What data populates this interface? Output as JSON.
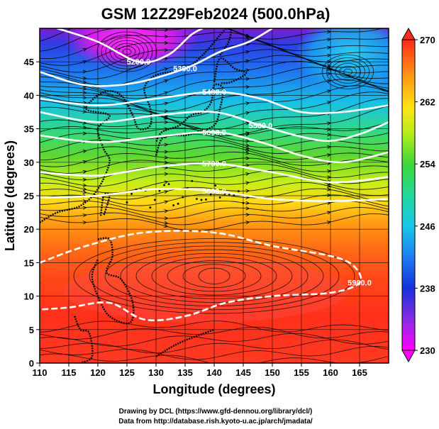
{
  "chart_data": {
    "type": "heatmap",
    "title": "GSM 12Z29Feb2024 (500.0hPa)",
    "xlabel": "Longitude (degrees)",
    "ylabel": "Latitude  (degrees)",
    "xlim": [
      110,
      170
    ],
    "ylim": [
      0,
      50
    ],
    "x_ticks": [
      "110",
      "115",
      "120",
      "125",
      "130",
      "135",
      "140",
      "145",
      "150",
      "155",
      "160",
      "165"
    ],
    "y_ticks": [
      "0",
      "5",
      "10",
      "15",
      "20",
      "25",
      "30",
      "35",
      "40",
      "45"
    ],
    "colorbar": {
      "range": [
        230,
        270
      ],
      "ticks": [
        "230",
        "238",
        "246",
        "254",
        "262",
        "270"
      ],
      "colors": [
        "#ff00ff",
        "#8a2be2",
        "#1530e0",
        "#19a6f0",
        "#21e0c8",
        "#3ed637",
        "#b6ee1c",
        "#ffe414",
        "#ff9a12",
        "#ff5a12",
        "#ff2b1a"
      ]
    },
    "contours": [
      {
        "label": "5200.0",
        "lat_at_lon": [
          [
            113,
            50
          ],
          [
            120,
            48
          ],
          [
            127,
            45
          ],
          [
            132,
            46
          ],
          [
            136,
            49
          ],
          [
            138,
            50
          ]
        ]
      },
      {
        "label": "5300.0",
        "lat_at_lon": [
          [
            110,
            43.5
          ],
          [
            118,
            41.5
          ],
          [
            126,
            41.8
          ],
          [
            135,
            44
          ],
          [
            141,
            46.5
          ],
          [
            146,
            48
          ],
          [
            150,
            50
          ]
        ]
      },
      {
        "label": "5400.0",
        "lat_at_lon": [
          [
            110,
            39.5
          ],
          [
            120,
            38.5
          ],
          [
            130,
            39.5
          ],
          [
            140,
            40.5
          ],
          [
            148,
            39.5
          ],
          [
            155,
            37.5
          ],
          [
            162,
            37.5
          ],
          [
            170,
            38.5
          ]
        ]
      },
      {
        "label": "5500.0",
        "lat_at_lon": [
          [
            110,
            37.5
          ],
          [
            120,
            36
          ],
          [
            130,
            37
          ],
          [
            140,
            37.5
          ],
          [
            148,
            35.5
          ],
          [
            155,
            33.8
          ],
          [
            160,
            33.2
          ],
          [
            165,
            34.2
          ],
          [
            170,
            36
          ]
        ]
      },
      {
        "label": "5600.0",
        "lat_at_lon": [
          [
            110,
            34
          ],
          [
            120,
            33
          ],
          [
            130,
            33.8
          ],
          [
            140,
            34.5
          ],
          [
            148,
            33
          ],
          [
            155,
            31
          ],
          [
            162,
            30
          ],
          [
            170,
            31.5
          ]
        ]
      },
      {
        "label": "5700.0",
        "lat_at_lon": [
          [
            110,
            28.5
          ],
          [
            120,
            28
          ],
          [
            130,
            29.3
          ],
          [
            140,
            29.8
          ],
          [
            150,
            28.5
          ],
          [
            160,
            27
          ],
          [
            170,
            27.8
          ]
        ]
      },
      {
        "label": "5800.0",
        "lat_at_lon": [
          [
            110,
            24.7
          ],
          [
            120,
            25
          ],
          [
            130,
            26
          ],
          [
            140,
            25.7
          ],
          [
            150,
            24.5
          ],
          [
            160,
            24.2
          ],
          [
            170,
            24.5
          ]
        ]
      },
      {
        "label": "5900.0",
        "lat_at_lon": [
          [
            110,
            15
          ],
          [
            118,
            17.5
          ],
          [
            128,
            19.5
          ],
          [
            140,
            19.5
          ],
          [
            150,
            17.5
          ],
          [
            160,
            16
          ],
          [
            164,
            14.5
          ],
          [
            165,
            12
          ],
          [
            160,
            10.5
          ],
          [
            150,
            10
          ],
          [
            142,
            9
          ],
          [
            135,
            7
          ],
          [
            128,
            6.5
          ],
          [
            122,
            9
          ],
          [
            115,
            8.3
          ],
          [
            110,
            8
          ]
        ]
      }
    ],
    "credits": [
      "Drawing by DCL (https://www.gfd-dennou.org/library/dcl/)",
      "Data from http://database.rish.kyoto-u.ac.jp/arch/jmadata/"
    ]
  }
}
